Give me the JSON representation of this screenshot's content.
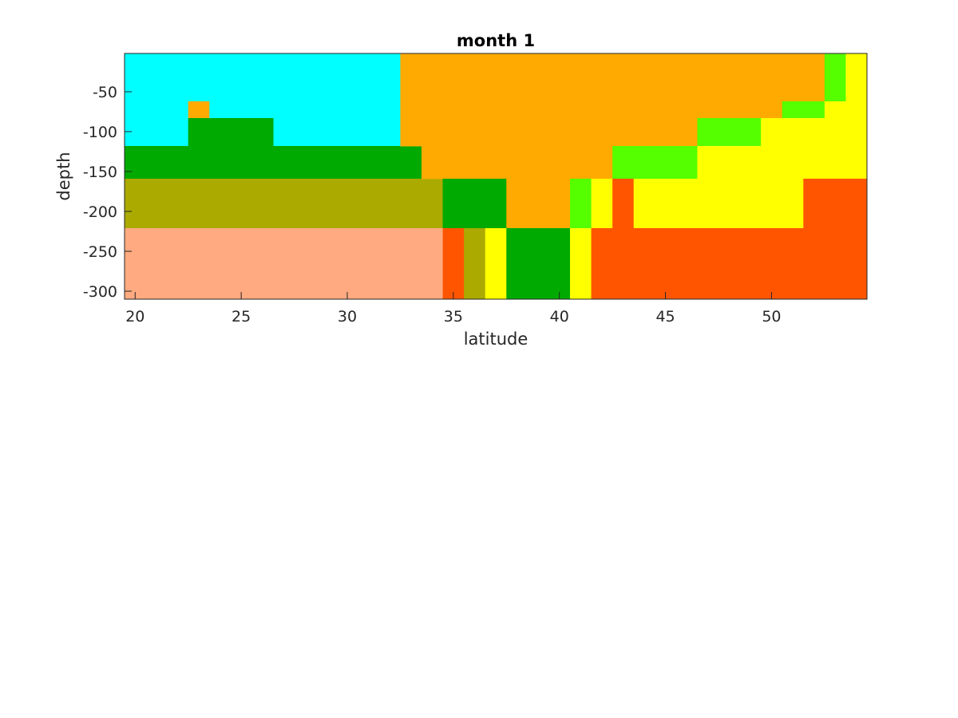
{
  "chart_data": {
    "type": "heatmap",
    "title": "month 1",
    "xlabel": "latitude",
    "ylabel": "depth",
    "xlim": [
      19.5,
      54.5
    ],
    "ylim": [
      -310,
      -2
    ],
    "x_ticks": [
      20,
      25,
      30,
      35,
      40,
      45,
      50
    ],
    "x_tick_labels": [
      "20",
      "25",
      "30",
      "35",
      "40",
      "45",
      "50"
    ],
    "y_ticks": [
      -50,
      -100,
      -150,
      -200,
      -250,
      -300
    ],
    "y_tick_labels": [
      "-50",
      "-100",
      "-150",
      "-200",
      "-250",
      "-300"
    ],
    "grid": false,
    "colors": {
      "cyan": "#00ffff",
      "orange": "#ffaa00",
      "green": "#00aa00",
      "lime": "#55ff00",
      "yellow": "#ffff00",
      "olive": "#aaaa00",
      "salmon": "#ffaa80",
      "red_orange": "#ff5500"
    },
    "cells": [
      {
        "lat": [
          19.5,
          32.5
        ],
        "depth": [
          -62,
          -2
        ],
        "color": "cyan"
      },
      {
        "lat": [
          19.5,
          22.5
        ],
        "depth": [
          -118,
          -62
        ],
        "color": "cyan"
      },
      {
        "lat": [
          22.5,
          23.5
        ],
        "depth": [
          -83,
          -62
        ],
        "color": "orange"
      },
      {
        "lat": [
          23.5,
          32.5
        ],
        "depth": [
          -83,
          -62
        ],
        "color": "cyan"
      },
      {
        "lat": [
          26.5,
          32.5
        ],
        "depth": [
          -118,
          -83
        ],
        "color": "cyan"
      },
      {
        "lat": [
          22.5,
          26.5
        ],
        "depth": [
          -118,
          -83
        ],
        "color": "green"
      },
      {
        "lat": [
          19.5,
          33.5
        ],
        "depth": [
          -159,
          -118
        ],
        "color": "green"
      },
      {
        "lat": [
          19.5,
          34.5
        ],
        "depth": [
          -221,
          -159
        ],
        "color": "olive"
      },
      {
        "lat": [
          19.5,
          34.5
        ],
        "depth": [
          -310,
          -221
        ],
        "color": "salmon"
      },
      {
        "lat": [
          32.5,
          52.5
        ],
        "depth": [
          -62,
          -2
        ],
        "color": "orange"
      },
      {
        "lat": [
          52.5,
          53.5
        ],
        "depth": [
          -62,
          -2
        ],
        "color": "lime"
      },
      {
        "lat": [
          53.5,
          54.5
        ],
        "depth": [
          -62,
          -2
        ],
        "color": "yellow"
      },
      {
        "lat": [
          32.5,
          50.5
        ],
        "depth": [
          -83,
          -62
        ],
        "color": "orange"
      },
      {
        "lat": [
          50.5,
          52.5
        ],
        "depth": [
          -83,
          -62
        ],
        "color": "lime"
      },
      {
        "lat": [
          52.5,
          54.5
        ],
        "depth": [
          -83,
          -62
        ],
        "color": "yellow"
      },
      {
        "lat": [
          32.5,
          46.5
        ],
        "depth": [
          -118,
          -83
        ],
        "color": "orange"
      },
      {
        "lat": [
          46.5,
          49.5
        ],
        "depth": [
          -118,
          -83
        ],
        "color": "lime"
      },
      {
        "lat": [
          49.5,
          54.5
        ],
        "depth": [
          -118,
          -83
        ],
        "color": "yellow"
      },
      {
        "lat": [
          33.5,
          42.5
        ],
        "depth": [
          -159,
          -118
        ],
        "color": "orange"
      },
      {
        "lat": [
          42.5,
          46.5
        ],
        "depth": [
          -159,
          -118
        ],
        "color": "lime"
      },
      {
        "lat": [
          46.5,
          54.5
        ],
        "depth": [
          -159,
          -118
        ],
        "color": "yellow"
      },
      {
        "lat": [
          34.5,
          37.5
        ],
        "depth": [
          -221,
          -159
        ],
        "color": "green"
      },
      {
        "lat": [
          37.5,
          40.5
        ],
        "depth": [
          -221,
          -159
        ],
        "color": "orange"
      },
      {
        "lat": [
          40.5,
          41.5
        ],
        "depth": [
          -221,
          -159
        ],
        "color": "lime"
      },
      {
        "lat": [
          41.5,
          42.5
        ],
        "depth": [
          -221,
          -159
        ],
        "color": "yellow"
      },
      {
        "lat": [
          42.5,
          43.5
        ],
        "depth": [
          -221,
          -159
        ],
        "color": "red_orange"
      },
      {
        "lat": [
          43.5,
          51.5
        ],
        "depth": [
          -221,
          -159
        ],
        "color": "yellow"
      },
      {
        "lat": [
          51.5,
          54.5
        ],
        "depth": [
          -221,
          -159
        ],
        "color": "red_orange"
      },
      {
        "lat": [
          34.5,
          35.5
        ],
        "depth": [
          -310,
          -221
        ],
        "color": "red_orange"
      },
      {
        "lat": [
          35.5,
          36.5
        ],
        "depth": [
          -310,
          -221
        ],
        "color": "olive"
      },
      {
        "lat": [
          36.5,
          37.5
        ],
        "depth": [
          -310,
          -221
        ],
        "color": "yellow"
      },
      {
        "lat": [
          37.5,
          40.5
        ],
        "depth": [
          -310,
          -221
        ],
        "color": "green"
      },
      {
        "lat": [
          40.5,
          41.5
        ],
        "depth": [
          -310,
          -221
        ],
        "color": "yellow"
      },
      {
        "lat": [
          41.5,
          54.5
        ],
        "depth": [
          -310,
          -221
        ],
        "color": "red_orange"
      }
    ]
  }
}
